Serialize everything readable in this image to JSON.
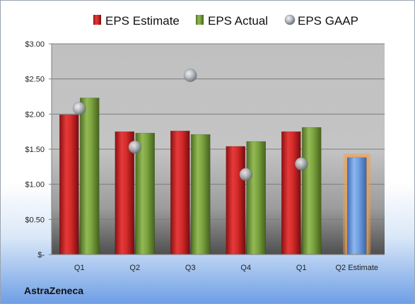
{
  "company": "AstraZeneca",
  "chart_data": {
    "type": "bar",
    "categories": [
      "Q1",
      "Q2",
      "Q3",
      "Q4",
      "Q1",
      "Q2 Estimate"
    ],
    "series": [
      {
        "name": "EPS Estimate",
        "values": [
          1.99,
          1.75,
          1.76,
          1.54,
          1.75,
          null
        ],
        "color": "#d42a2a"
      },
      {
        "name": "EPS Actual",
        "values": [
          2.23,
          1.73,
          1.71,
          1.61,
          1.81,
          null
        ],
        "color": "#7ba33e"
      },
      {
        "name": "EPS GAAP",
        "type": "scatter",
        "values": [
          2.08,
          1.53,
          2.55,
          1.14,
          1.29,
          null
        ],
        "color": "#a8adb3"
      }
    ],
    "forecast": {
      "category": "Q2 Estimate",
      "value": 1.38,
      "color": "#6f9ee0",
      "glow": "#f0a050"
    },
    "ylim": [
      0,
      3.0
    ],
    "yticks": [
      0,
      0.5,
      1.0,
      1.5,
      2.0,
      2.5,
      3.0
    ],
    "ytick_labels": [
      "$-",
      "$0.50",
      "$1.00",
      "$1.50",
      "$2.00",
      "$2.50",
      "$3.00"
    ],
    "legend_position": "top",
    "grid": true
  }
}
